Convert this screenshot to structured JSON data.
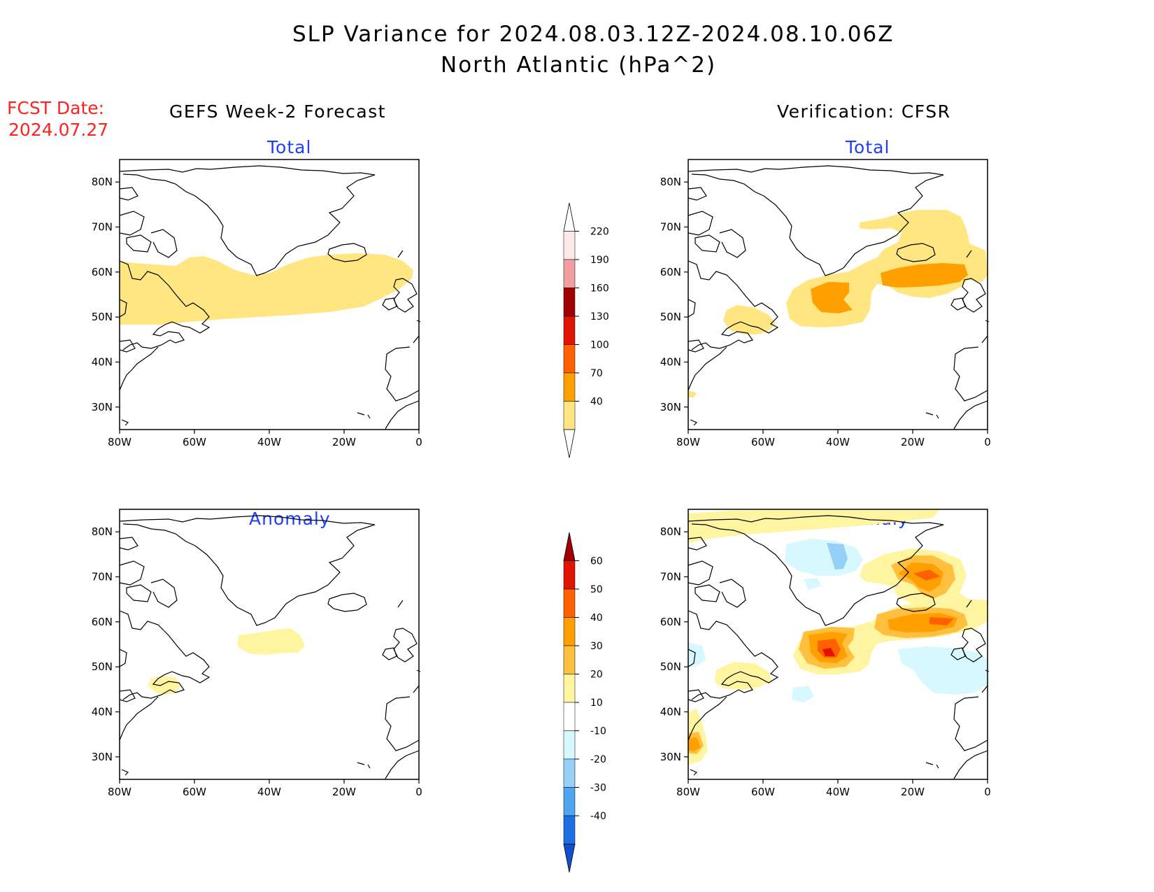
{
  "title": {
    "line1": "SLP Variance for 2024.08.03.12Z-2024.08.10.06Z",
    "line2": "North Atlantic (hPa^2)"
  },
  "fcst_date": {
    "line1": "FCST Date:",
    "line2": "2024.07.27"
  },
  "columns": {
    "left": "GEFS Week-2 Forecast",
    "right": "Verification: CFSR"
  },
  "panel_titles": {
    "total": "Total",
    "anomaly": "Anomaly"
  },
  "map_axes": {
    "lon_range": [
      -80,
      0
    ],
    "lat_range": [
      25,
      85
    ],
    "lon_ticks": [
      "80W",
      "60W",
      "40W",
      "20W",
      "0"
    ],
    "lon_values": [
      -80,
      -60,
      -40,
      -20,
      0
    ],
    "lat_ticks": [
      "80N",
      "70N",
      "60N",
      "50N",
      "40N",
      "30N"
    ],
    "lat_values": [
      80,
      70,
      60,
      50,
      40,
      30
    ]
  },
  "colorbars": {
    "total": {
      "levels": [
        "40",
        "70",
        "100",
        "130",
        "160",
        "190",
        "220"
      ],
      "colors": [
        "#ffe680",
        "#ffa000",
        "#ff6000",
        "#e01400",
        "#a00000",
        "#f0a0a0",
        "#ffe8e8"
      ]
    },
    "anomaly": {
      "levels": [
        "60",
        "50",
        "40",
        "30",
        "20",
        "10",
        "-10",
        "-20",
        "-30",
        "-40"
      ],
      "colors": [
        "#a00000",
        "#e01400",
        "#ff6000",
        "#ffa000",
        "#ffc040",
        "#fff5a0",
        "#ffffff",
        "#d8f8ff",
        "#96d0f8",
        "#50a5f0",
        "#1e6ee6",
        "#1050d0"
      ]
    }
  },
  "shading_colors": {
    "c40": "#ffe680",
    "c70": "#ffa000",
    "a10": "#fff5a0",
    "a20": "#ffc040",
    "a30": "#ffa000",
    "a40": "#ff6000",
    "a50": "#e01400",
    "n10": "#d8f8ff",
    "n20": "#96d0f8"
  }
}
